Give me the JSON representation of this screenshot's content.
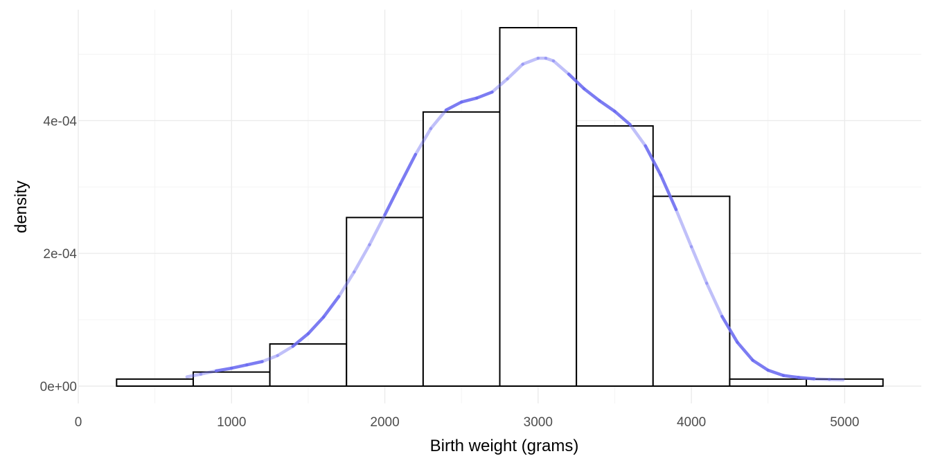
{
  "chart_data": {
    "type": "histogram",
    "xlabel": "Birth weight (grams)",
    "ylabel": "density",
    "xlim": [
      0,
      5500
    ],
    "ylim": [
      -3.5e-05,
      0.00054
    ],
    "x_ticks": [
      {
        "value": 0,
        "label": "0"
      },
      {
        "value": 1000,
        "label": "1000"
      },
      {
        "value": 2000,
        "label": "2000"
      },
      {
        "value": 3000,
        "label": "3000"
      },
      {
        "value": 4000,
        "label": "4000"
      },
      {
        "value": 5000,
        "label": "5000"
      }
    ],
    "y_ticks": [
      {
        "value": 0,
        "label": "0e+00"
      },
      {
        "value": 0.0002,
        "label": "2e-04"
      },
      {
        "value": 0.0004,
        "label": "4e-04"
      }
    ],
    "grid": true,
    "bins": [
      {
        "x0": 250,
        "x1": 750,
        "density": 1.06e-05
      },
      {
        "x0": 750,
        "x1": 1250,
        "density": 2.12e-05
      },
      {
        "x0": 1250,
        "x1": 1750,
        "density": 6.35e-05
      },
      {
        "x0": 1750,
        "x1": 2250,
        "density": 0.000254
      },
      {
        "x0": 2250,
        "x1": 2750,
        "density": 0.000413
      },
      {
        "x0": 2750,
        "x1": 3250,
        "density": 0.00054
      },
      {
        "x0": 3250,
        "x1": 3750,
        "density": 0.000392
      },
      {
        "x0": 3750,
        "x1": 4250,
        "density": 0.000286
      },
      {
        "x0": 4250,
        "x1": 4750,
        "density": 1.06e-05
      },
      {
        "x0": 4750,
        "x1": 5250,
        "density": 1.06e-05
      }
    ],
    "density_curve": {
      "color": "#6a6af0",
      "x": [
        709,
        800,
        900,
        1000,
        1100,
        1200,
        1300,
        1400,
        1500,
        1600,
        1700,
        1800,
        1900,
        2000,
        2100,
        2200,
        2300,
        2400,
        2500,
        2600,
        2700,
        2800,
        2900,
        3000,
        3050,
        3100,
        3200,
        3300,
        3400,
        3500,
        3600,
        3700,
        3800,
        3900,
        4000,
        4100,
        4200,
        4300,
        4400,
        4500,
        4600,
        4700,
        4800,
        4900,
        4990
      ],
      "y": [
        1.4e-05,
        1.8e-05,
        2.3e-05,
        2.7e-05,
        3.2e-05,
        3.7e-05,
        4.6e-05,
        6e-05,
        7.9e-05,
        0.000104,
        0.000135,
        0.000172,
        0.000213,
        0.000258,
        0.000304,
        0.000349,
        0.000388,
        0.000416,
        0.000428,
        0.000434,
        0.000443,
        0.000463,
        0.000485,
        0.000494,
        0.000494,
        0.00049,
        0.00047,
        0.000448,
        0.00043,
        0.000414,
        0.000394,
        0.000362,
        0.000318,
        0.000266,
        0.00021,
        0.000155,
        0.000105,
        6.6e-05,
        3.9e-05,
        2.4e-05,
        1.6e-05,
        1.3e-05,
        1.1e-05,
        1e-05,
        9.4e-06
      ]
    }
  }
}
